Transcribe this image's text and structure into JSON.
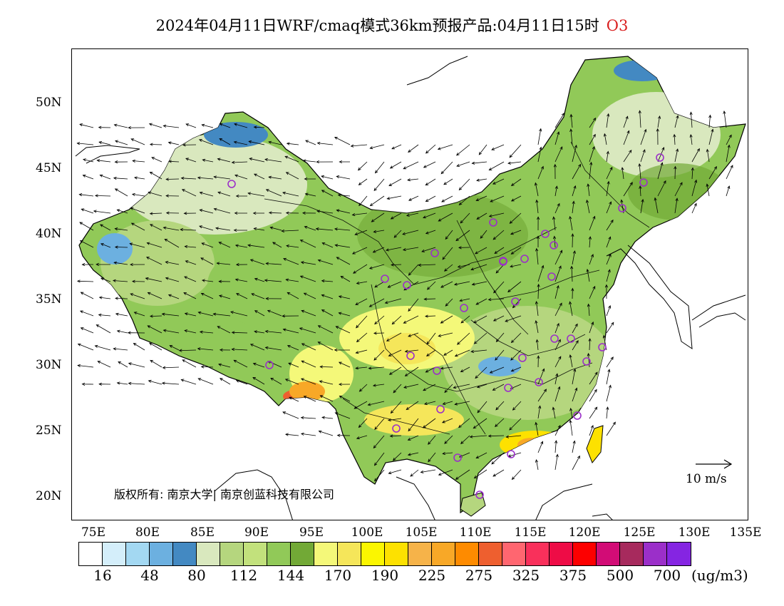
{
  "title": {
    "main": "2024年04月11日WRF/cmaq模式36km预报产品:04月11日15时",
    "pollutant": "O3"
  },
  "map": {
    "lat_labels": [
      "50N",
      "45N",
      "40N",
      "35N",
      "30N",
      "25N",
      "20N"
    ],
    "lon_labels": [
      "75E",
      "80E",
      "85E",
      "90E",
      "95E",
      "100E",
      "105E",
      "110E",
      "115E",
      "120E",
      "125E",
      "130E",
      "135E"
    ],
    "copyright": "版权所有: 南京大学| 南京创蓝科技有限公司",
    "wind_scale_label": "10 m/s"
  },
  "colorbar": {
    "colors": [
      "#ffffff",
      "#d4eefa",
      "#a3d8f2",
      "#6cb0e0",
      "#4389c2",
      "#d9e8be",
      "#b5d67e",
      "#c2e17c",
      "#91c958",
      "#72a936",
      "#f4f879",
      "#f5e65a",
      "#fbf600",
      "#fde100",
      "#f6b349",
      "#f8a827",
      "#fe8b00",
      "#ee5f2f",
      "#ff6670",
      "#f9305b",
      "#ee0c46",
      "#fd0000",
      "#d20c76",
      "#a72a5d",
      "#9b2fc9",
      "#8525e2"
    ],
    "tick_labels": [
      "16",
      "48",
      "80",
      "112",
      "144",
      "170",
      "190",
      "225",
      "275",
      "325",
      "375",
      "500",
      "700"
    ],
    "unit": "(ug/m3)"
  }
}
